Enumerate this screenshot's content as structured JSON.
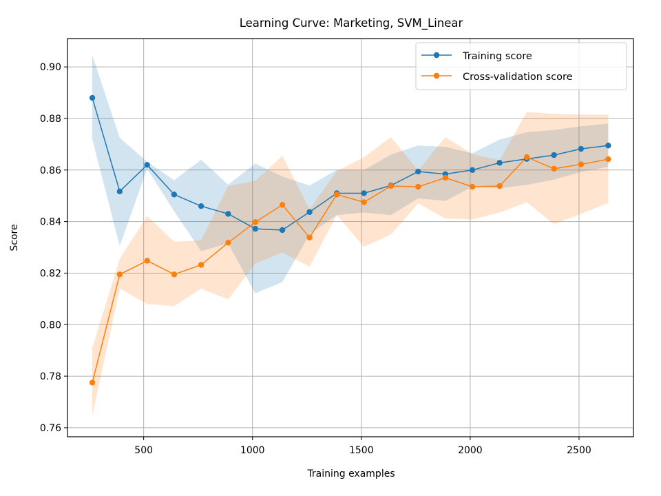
{
  "chart_data": {
    "type": "line",
    "title": "Learning Curve: Marketing, SVM_Linear",
    "xlabel": "Training examples",
    "ylabel": "Score",
    "xlim": [
      150,
      2750
    ],
    "ylim": [
      0.7565,
      0.911
    ],
    "xticks": [
      500,
      1000,
      1500,
      2000,
      2500
    ],
    "yticks": [
      0.76,
      0.78,
      0.8,
      0.82,
      0.84,
      0.86,
      0.88,
      0.9
    ],
    "xtick_labels": [
      "500",
      "1000",
      "1500",
      "2000",
      "2500"
    ],
    "ytick_labels": [
      "0.76",
      "0.78",
      "0.80",
      "0.82",
      "0.84",
      "0.86",
      "0.88",
      "0.90"
    ],
    "grid": true,
    "legend_position": "top-right",
    "x": [
      264,
      390,
      516,
      640,
      764,
      888,
      1013,
      1137,
      1262,
      1387,
      1512,
      1636,
      1761,
      1886,
      2010,
      2135,
      2260,
      2385,
      2509,
      2634
    ],
    "series": [
      {
        "name": "Training score",
        "color": "#1f77b4",
        "values": [
          0.888,
          0.8517,
          0.862,
          0.8505,
          0.846,
          0.843,
          0.8372,
          0.8367,
          0.8437,
          0.851,
          0.851,
          0.854,
          0.8594,
          0.8584,
          0.86,
          0.8628,
          0.8643,
          0.8658,
          0.8682,
          0.8695
        ],
        "lower": [
          0.872,
          0.8305,
          0.8605,
          0.844,
          0.8285,
          0.8315,
          0.8122,
          0.8165,
          0.835,
          0.8425,
          0.8435,
          0.8425,
          0.849,
          0.848,
          0.8535,
          0.853,
          0.8542,
          0.8563,
          0.8592,
          0.8612
        ],
        "upper": [
          0.9045,
          0.8725,
          0.8632,
          0.856,
          0.864,
          0.8543,
          0.8625,
          0.8575,
          0.854,
          0.86,
          0.86,
          0.866,
          0.8695,
          0.869,
          0.8665,
          0.8718,
          0.8747,
          0.8755,
          0.877,
          0.878
        ]
      },
      {
        "name": "Cross-validation score",
        "color": "#ff7f0e",
        "values": [
          0.7775,
          0.8195,
          0.8248,
          0.8195,
          0.8232,
          0.8318,
          0.8398,
          0.8465,
          0.8338,
          0.8505,
          0.8475,
          0.8538,
          0.8535,
          0.857,
          0.8535,
          0.8538,
          0.865,
          0.8605,
          0.8622,
          0.8642
        ],
        "lower": [
          0.7645,
          0.814,
          0.808,
          0.8072,
          0.814,
          0.8098,
          0.8237,
          0.828,
          0.8225,
          0.8425,
          0.8302,
          0.835,
          0.847,
          0.8412,
          0.8408,
          0.8435,
          0.8475,
          0.839,
          0.843,
          0.8472
        ],
        "upper": [
          0.791,
          0.8255,
          0.8422,
          0.8322,
          0.8327,
          0.8538,
          0.8558,
          0.8655,
          0.8448,
          0.8595,
          0.865,
          0.8728,
          0.8598,
          0.8728,
          0.8662,
          0.8638,
          0.8825,
          0.8818,
          0.8815,
          0.8815
        ]
      }
    ]
  }
}
